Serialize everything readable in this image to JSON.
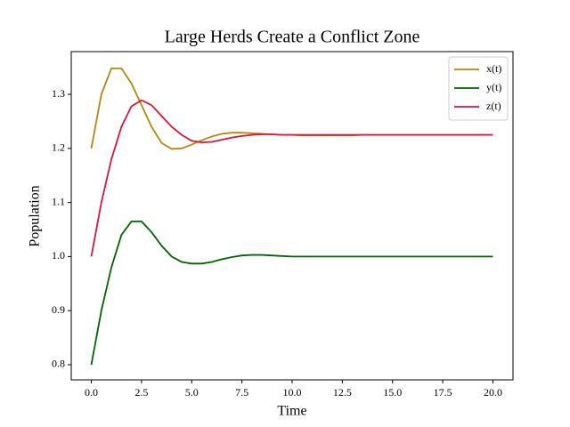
{
  "chart_data": {
    "type": "line",
    "title": "Large Herds Create a Conflict Zone",
    "xlabel": "Time",
    "ylabel": "Population",
    "x": [
      0,
      0.5,
      1,
      1.5,
      2,
      2.5,
      3,
      3.5,
      4,
      4.5,
      5,
      5.5,
      6,
      6.5,
      7,
      7.5,
      8,
      8.5,
      9,
      9.5,
      10,
      10.5,
      11,
      11.5,
      12,
      12.5,
      13,
      13.5,
      14,
      14.5,
      15,
      15.5,
      16,
      16.5,
      17,
      17.5,
      18,
      18.5,
      19,
      19.5,
      20
    ],
    "series": [
      {
        "name": "x(t)",
        "color": "#b8860b",
        "values": [
          1.2,
          1.3,
          1.348,
          1.348,
          1.32,
          1.28,
          1.24,
          1.21,
          1.199,
          1.2,
          1.207,
          1.215,
          1.222,
          1.227,
          1.229,
          1.229,
          1.228,
          1.227,
          1.226,
          1.225,
          1.225,
          1.224,
          1.224,
          1.224,
          1.224,
          1.224,
          1.224,
          1.225,
          1.225,
          1.225,
          1.225,
          1.225,
          1.225,
          1.225,
          1.225,
          1.225,
          1.225,
          1.225,
          1.225,
          1.225,
          1.225
        ]
      },
      {
        "name": "y(t)",
        "color": "#006400",
        "values": [
          0.8,
          0.9,
          0.98,
          1.04,
          1.065,
          1.065,
          1.045,
          1.02,
          1.0,
          0.99,
          0.987,
          0.987,
          0.99,
          0.995,
          0.999,
          1.002,
          1.003,
          1.003,
          1.002,
          1.001,
          1.0,
          1.0,
          1.0,
          1.0,
          1.0,
          1.0,
          1.0,
          1.0,
          1.0,
          1.0,
          1.0,
          1.0,
          1.0,
          1.0,
          1.0,
          1.0,
          1.0,
          1.0,
          1.0,
          1.0,
          1.0
        ]
      },
      {
        "name": "z(t)",
        "color": "#dc143c",
        "values": [
          1.0,
          1.1,
          1.18,
          1.24,
          1.278,
          1.289,
          1.28,
          1.26,
          1.24,
          1.225,
          1.214,
          1.211,
          1.212,
          1.216,
          1.22,
          1.223,
          1.225,
          1.226,
          1.226,
          1.225,
          1.225,
          1.225,
          1.225,
          1.225,
          1.225,
          1.225,
          1.225,
          1.225,
          1.225,
          1.225,
          1.225,
          1.225,
          1.225,
          1.225,
          1.225,
          1.225,
          1.225,
          1.225,
          1.225,
          1.225,
          1.225
        ]
      }
    ],
    "xlim": [
      -1,
      21
    ],
    "ylim": [
      0.772,
      1.379
    ],
    "xticks": [
      {
        "value": 0,
        "label": "0.0"
      },
      2.5,
      {
        "value": 5,
        "label": "5.0"
      },
      7.5,
      {
        "value": 10,
        "label": "10.0"
      },
      12.5,
      {
        "value": 15,
        "label": "15.0"
      },
      17.5,
      {
        "value": 20,
        "label": "20.0"
      }
    ],
    "yticks": [
      0.8,
      0.9,
      {
        "value": 1,
        "label": "1.0"
      },
      1.1,
      1.2,
      1.3
    ],
    "legend": "upper right"
  }
}
